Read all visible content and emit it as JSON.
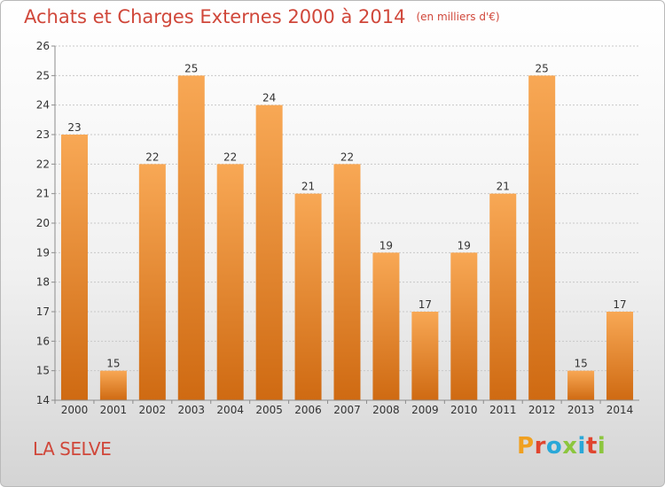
{
  "header": {
    "title": "Achats et Charges Externes 2000 à 2014",
    "unit": "(en milliers d'€)"
  },
  "footer": {
    "place": "LA SELVE",
    "brand": "Proxiti",
    "brand_colors": [
      "#f0a020",
      "#e0452f",
      "#2aa8d8",
      "#8cc63e",
      "#2aa8d8",
      "#e0452f",
      "#8cc63e"
    ]
  },
  "colors": {
    "title": "#d0473a",
    "bar_light": "#f8a855",
    "bar_dark": "#cf6a12",
    "grid": "#c8c8c8",
    "axis": "#8c8c8c"
  },
  "chart_data": {
    "type": "bar",
    "title": "Achats et Charges Externes 2000 à 2014",
    "subtitle": "(en milliers d'€)",
    "xlabel": "",
    "ylabel": "",
    "categories": [
      "2000",
      "2001",
      "2002",
      "2003",
      "2004",
      "2005",
      "2006",
      "2007",
      "2008",
      "2009",
      "2010",
      "2011",
      "2012",
      "2013",
      "2014"
    ],
    "values": [
      23,
      15,
      22,
      25,
      22,
      24,
      21,
      22,
      19,
      17,
      19,
      21,
      25,
      15,
      17
    ],
    "ylim": [
      14,
      26
    ],
    "yticks": [
      14,
      15,
      16,
      17,
      18,
      19,
      20,
      21,
      22,
      23,
      24,
      25,
      26
    ],
    "grid": true,
    "legend": "none"
  }
}
